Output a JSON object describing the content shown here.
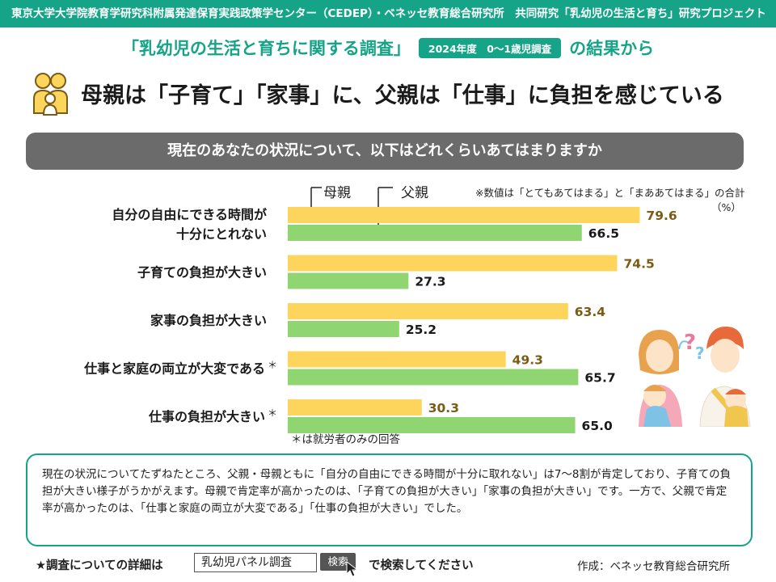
{
  "header": {
    "project_line": "東京大学大学院教育学研究科附属発達保育実践政策学センター（CEDEP）・ベネッセ教育総合研究所　共同研究「乳幼児の生活と育ち」研究プロジェクト",
    "survey_title": "「乳幼児の生活と育ちに関する調査」",
    "survey_badge": "2024年度　0～1歳児調査",
    "survey_suffix": "の結果から",
    "headline": "母親は「子育て」「家事」に、父親は「仕事」に負担を感じている"
  },
  "question": "現在のあなたの状況について、以下はどれくらいあてはまりますか",
  "legend": {
    "mother": "母親",
    "father": "父親"
  },
  "note": "※数値は「とてもあてはまる」と「まああてはまる」の合計",
  "unit": "（%）",
  "footnote": "＊は就労者のみの回答",
  "colors": {
    "accent": "#16a489",
    "mother": "#fdd55c",
    "father": "#8fd672",
    "mother_value": "#7a5c14"
  },
  "icons": {
    "header_icon": "family-icon",
    "illustration": "parents-with-babies-illustration",
    "cursor": "mouse-cursor-icon"
  },
  "chart_data": {
    "type": "bar",
    "orientation": "horizontal",
    "categories": [
      [
        "自分の自由にできる時間が",
        "十分にとれない"
      ],
      [
        "子育ての負担が大きい"
      ],
      [
        "家事の負担が大きい"
      ],
      [
        "仕事と家庭の両立が大変である"
      ],
      [
        "仕事の負担が大きい"
      ]
    ],
    "asterisk": [
      false,
      false,
      false,
      true,
      true
    ],
    "asterisk_mark": "＊",
    "series": [
      {
        "name": "母親",
        "values": [
          79.6,
          74.5,
          63.4,
          49.3,
          30.3
        ]
      },
      {
        "name": "父親",
        "values": [
          66.5,
          27.3,
          25.2,
          65.7,
          65.0
        ]
      }
    ],
    "xlim": [
      0,
      100
    ],
    "grid": false,
    "legend_position": "top"
  },
  "summary": "現在の状況についてたずねたところ、父親・母親ともに「自分の自由にできる時間が十分に取れない」は7～8割が肯定しており、子育ての負担が大きい様子がうかがえます。母親で肯定率が高かったのは、「子育ての負担が大きい」「家事の負担が大きい」です。一方で、父親で肯定率が高かったのは、「仕事と家庭の両立が大変である」「仕事の負担が大きい」でした。",
  "footer": {
    "lead": "★調査についての詳細は",
    "search_value": "乳幼児パネル調査",
    "search_button": "検索",
    "tail": "で検索してください",
    "credit": "作成：ベネッセ教育総合研究所"
  }
}
